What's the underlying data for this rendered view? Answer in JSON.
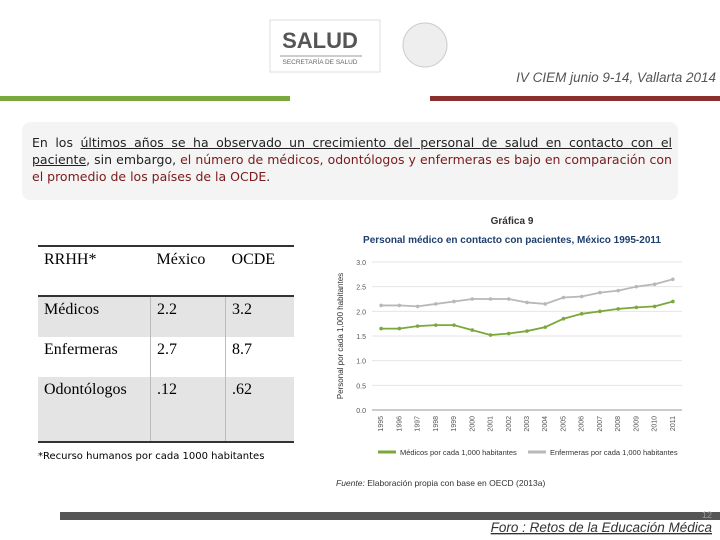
{
  "header": {
    "logo_title": "SALUD",
    "logo_subtitle": "SECRETARÍA DE SALUD",
    "event": "IV CIEM junio 9-14, Vallarta 2014"
  },
  "intro": {
    "part1": "En los ",
    "part2": "últimos años se ha observado un crecimiento del personal de salud en contacto con el paciente",
    "part3": ", sin embargo, ",
    "part4": "el número de médicos, odontólogos y enfermeras es bajo en comparación con el promedio de los países de la OCDE",
    "part5": "."
  },
  "table": {
    "header": [
      "RRHH*",
      "México",
      "OCDE"
    ],
    "rows": [
      [
        "Médicos",
        "2.2",
        "3.2"
      ],
      [
        "Enfermeras",
        "2.7",
        "8.7"
      ],
      [
        "Odontólogos",
        ".12",
        ".62"
      ]
    ],
    "note": "*Recurso humanos por cada 1000 habitantes"
  },
  "chart_data": {
    "type": "line",
    "label": "Gráfica 9",
    "title": "Personal médico en contacto con pacientes, México 1995-2011",
    "y_label": "Personal por cada 1,000 habitantes",
    "categories": [
      "1995",
      "1996",
      "1997",
      "1998",
      "1999",
      "2000",
      "2001",
      "2002",
      "2003",
      "2004",
      "2005",
      "2006",
      "2007",
      "2008",
      "2009",
      "2010",
      "2011"
    ],
    "series": [
      {
        "name": "Médicos por cada 1,000 habitantes",
        "color": "#7aa83a",
        "values": [
          1.65,
          1.65,
          1.7,
          1.72,
          1.72,
          1.62,
          1.52,
          1.55,
          1.6,
          1.68,
          1.85,
          1.95,
          2.0,
          2.05,
          2.08,
          2.1,
          2.2
        ]
      },
      {
        "name": "Enfermeras por cada 1,000 habitantes",
        "color": "#b8b8b8",
        "values": [
          2.12,
          2.12,
          2.1,
          2.15,
          2.2,
          2.25,
          2.25,
          2.25,
          2.18,
          2.15,
          2.28,
          2.3,
          2.38,
          2.42,
          2.5,
          2.55,
          2.65
        ]
      }
    ],
    "ylim": [
      0,
      3
    ],
    "yticks": [
      {
        "value": 0,
        "label": "0.0"
      },
      {
        "value": 0.5,
        "label": "0.5"
      },
      {
        "value": 1,
        "label": "1.0"
      },
      {
        "value": 1.5,
        "label": "1.5"
      },
      {
        "value": 2,
        "label": "2.0"
      },
      {
        "value": 2.5,
        "label": "2.5"
      },
      {
        "value": 3,
        "label": "3.0"
      }
    ],
    "grid": true,
    "source_label": "Fuente:",
    "source": " Elaboración propia con base en OECD (2013a)"
  },
  "footer": {
    "text": "Foro : Retos de la Educación Médica",
    "page": "12"
  }
}
